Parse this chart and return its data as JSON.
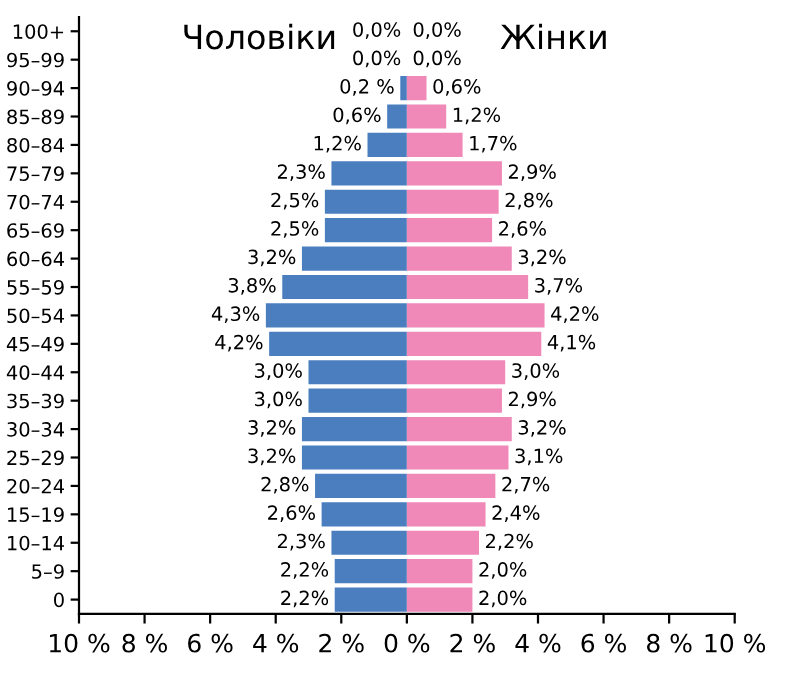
{
  "chart_data": {
    "type": "bar",
    "orientation": "horizontal",
    "categories": [
      "100+",
      "95–99",
      "90–94",
      "85–89",
      "80–84",
      "75–79",
      "70–74",
      "65–69",
      "60–64",
      "55–59",
      "50–54",
      "45–49",
      "40–44",
      "35–39",
      "30–34",
      "25–29",
      "20–24",
      "15–19",
      "10–14",
      "5–9",
      "0"
    ],
    "series": [
      {
        "name": "Чоловіки",
        "color": "#4a7ebf",
        "values": [
          0.0,
          0.0,
          0.2,
          0.6,
          1.2,
          2.3,
          2.5,
          2.5,
          3.2,
          3.8,
          4.3,
          4.2,
          3.0,
          3.0,
          3.2,
          3.2,
          2.8,
          2.6,
          2.3,
          2.2,
          2.2
        ],
        "base": [
          null,
          null,
          -0.2,
          -0.6,
          -1.2,
          -2.3,
          -2.5,
          -2.5,
          -3.2,
          -3.8,
          -4.3,
          -4.2,
          -3.0,
          -3.0,
          -3.2,
          -3.2,
          -2.8,
          -2.6,
          -2.3,
          -2.2,
          -2.2
        ],
        "value_labels": [
          "0,0%",
          "0,0%",
          "0,2 %",
          "0,6%",
          "1,2%",
          "2,3%",
          "2,5%",
          "2,5%",
          "3,2%",
          "3,8%",
          "4,3%",
          "4,2%",
          "3,0%",
          "3,0%",
          "3,2%",
          "3,2%",
          "2,8%",
          "2,6%",
          "2,3%",
          "2,2%",
          "2,2%"
        ]
      },
      {
        "name": "Жінки",
        "color": "#f088b8",
        "values": [
          0.0,
          0.0,
          0.6,
          1.2,
          1.7,
          2.9,
          2.8,
          2.6,
          3.2,
          3.7,
          4.2,
          4.1,
          3.0,
          2.9,
          3.2,
          3.1,
          2.7,
          2.4,
          2.2,
          2.0,
          2.0
        ],
        "value_labels": [
          "0,0%",
          "0,0%",
          "0,6%",
          "1,2%",
          "1,7%",
          "2,9%",
          "2,8%",
          "2,6%",
          "3,2%",
          "3,7%",
          "4,2%",
          "4,1%",
          "3,0%",
          "2,9%",
          "3,2%",
          "3,1%",
          "2,7%",
          "2,4%",
          "2,2%",
          "2,0%",
          "2,0%"
        ]
      }
    ],
    "xlim": [
      -10,
      10
    ],
    "xticks": [
      {
        "value": -10,
        "label": "10 %"
      },
      {
        "value": -8,
        "label": "8 %"
      },
      {
        "value": -6,
        "label": "6 %"
      },
      {
        "value": -4,
        "label": "4 %"
      },
      {
        "value": -2,
        "label": "2 %"
      },
      {
        "value": 0,
        "label": "0 %"
      },
      {
        "value": 2,
        "label": "2 %"
      },
      {
        "value": 4,
        "label": "4 %"
      },
      {
        "value": 6,
        "label": "6 %"
      },
      {
        "value": 8,
        "label": "8 %"
      },
      {
        "value": 10,
        "label": "10 %"
      }
    ],
    "grid": false,
    "legend": false
  }
}
